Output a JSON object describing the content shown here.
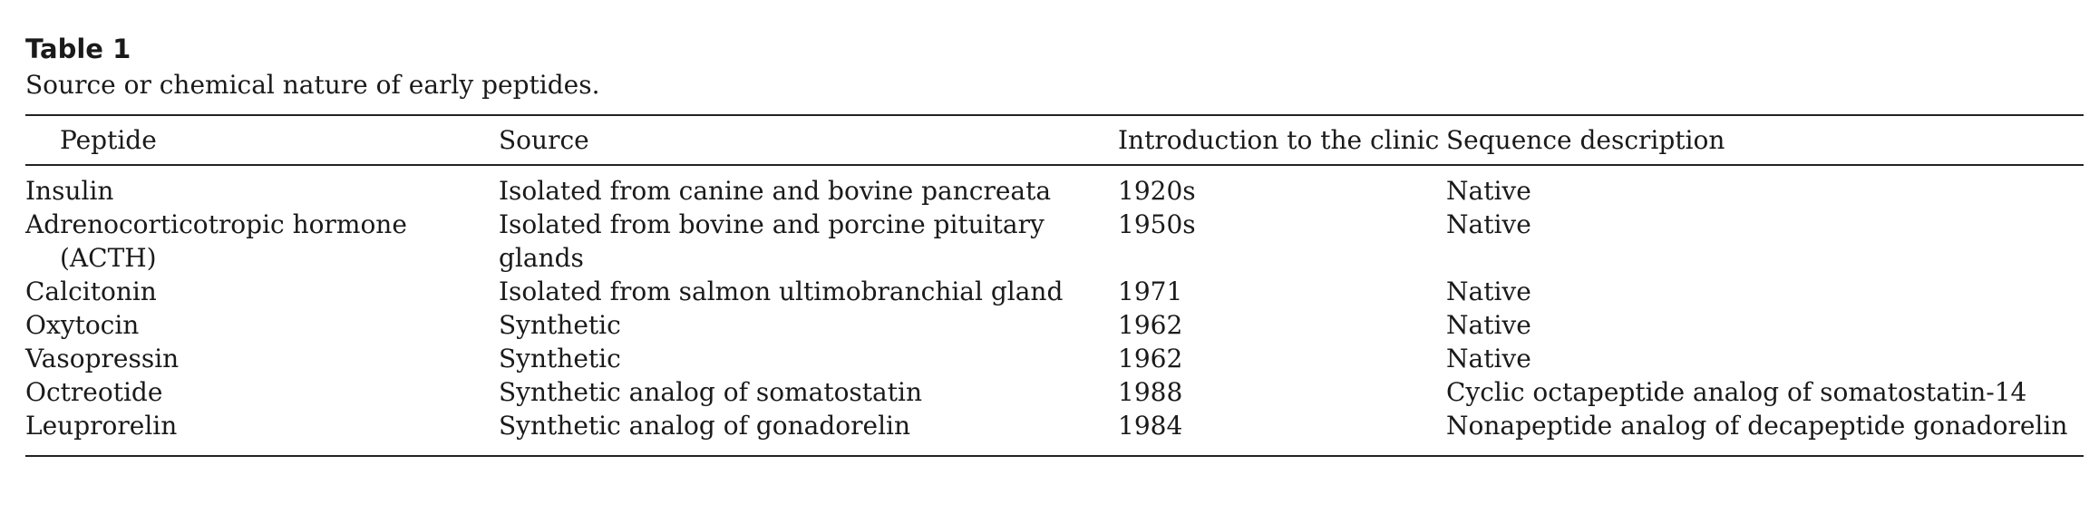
{
  "table": {
    "label": "Table 1",
    "caption": "Source or chemical nature of early peptides.",
    "headers": [
      "Peptide",
      "Source",
      "Introduction to the clinic",
      "Sequence description"
    ],
    "rows": [
      [
        "Insulin",
        "Isolated from canine and bovine pancreata",
        "1920s",
        "Native"
      ],
      [
        "Adrenocorticotropic hormone (ACTH)",
        "Isolated from bovine and porcine pituitary glands",
        "1950s",
        "Native"
      ],
      [
        "Calcitonin",
        "Isolated from salmon ultimobranchial gland",
        "1971",
        "Native"
      ],
      [
        "Oxytocin",
        "Synthetic",
        "1962",
        "Native"
      ],
      [
        "Vasopressin",
        "Synthetic",
        "1962",
        "Native"
      ],
      [
        "Octreotide",
        "Synthetic analog of somatostatin",
        "1988",
        "Cyclic octapeptide analog of somatostatin-14"
      ],
      [
        "Leuprorelin",
        "Synthetic analog of gonadorelin",
        "1984",
        "Nonapeptide analog of decapeptide gonadorelin"
      ]
    ]
  }
}
